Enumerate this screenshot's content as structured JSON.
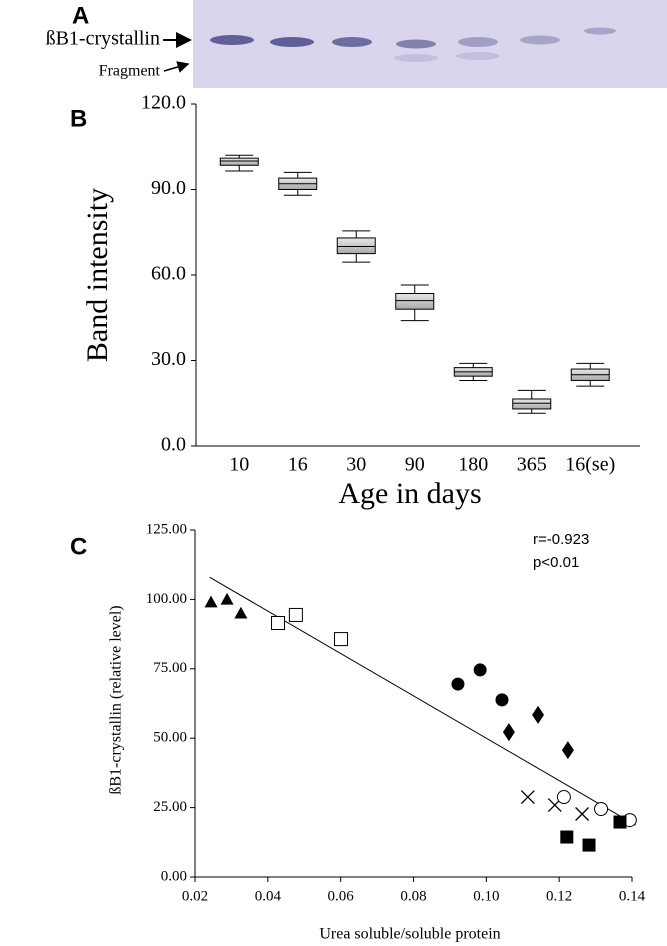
{
  "panel_a": {
    "label": "A",
    "band_labels": [
      "ßB1-crystallin",
      "Fragment"
    ]
  },
  "chart_data": [
    {
      "type": "box",
      "panel_label": "B",
      "x_label": "Age in days",
      "y_label": "Band intensity",
      "categories": [
        "10",
        "16",
        "30",
        "90",
        "180",
        "365",
        "16(se)"
      ],
      "min": [
        96.5,
        88,
        64.5,
        44,
        23,
        11.5,
        21
      ],
      "q1": [
        98.5,
        90,
        67.5,
        48,
        24.5,
        13,
        23
      ],
      "median": [
        100,
        92,
        70,
        51,
        26,
        15,
        25
      ],
      "q3": [
        101,
        94,
        73,
        53.5,
        27.5,
        16.5,
        27
      ],
      "max": [
        102,
        96,
        75.5,
        56.5,
        29,
        19.5,
        29
      ],
      "color": "#c8c8c8",
      "ylim": [
        0,
        120
      ],
      "yticks": [
        {
          "value": 0,
          "label": "0.0"
        },
        {
          "value": 30,
          "label": "30.0"
        },
        {
          "value": 60,
          "label": "60.0"
        },
        {
          "value": 90,
          "label": "90.0"
        },
        {
          "value": 120,
          "label": "120.0"
        }
      ]
    },
    {
      "type": "scatter",
      "panel_label": "C",
      "x_label": "Urea soluble/soluble protein",
      "y_label": "ßB1-crystallin (relative level)",
      "series": [
        {
          "marker": "triangle",
          "color": "#000000",
          "x": [
            0.0244,
            0.0288,
            0.0326
          ],
          "values": [
            99,
            100,
            95
          ]
        },
        {
          "marker": "open-square",
          "color": "#000000",
          "x": [
            0.0428,
            0.0477,
            0.0601
          ],
          "values": [
            91.5,
            94.4,
            85.7
          ]
        },
        {
          "marker": "circle",
          "color": "#000000",
          "x": [
            0.0922,
            0.0983,
            0.1043
          ],
          "values": [
            69.5,
            74.6,
            63.8
          ]
        },
        {
          "marker": "diamond",
          "color": "#000000",
          "x": [
            0.1062,
            0.1142,
            0.1224
          ],
          "values": [
            52.2,
            58.4,
            45.7
          ]
        },
        {
          "marker": "cross",
          "color": "#000000",
          "x": [
            0.1114,
            0.1188,
            0.1263
          ],
          "values": [
            28.8,
            25.9,
            22.7
          ]
        },
        {
          "marker": "open-circle",
          "color": "#000000",
          "x": [
            0.1213,
            0.1315,
            0.1394
          ],
          "values": [
            28.8,
            24.5,
            20.5
          ]
        },
        {
          "marker": "square",
          "color": "#000000",
          "x": [
            0.1221,
            0.1282,
            0.1367
          ],
          "values": [
            14.4,
            11.5,
            19.8
          ]
        }
      ],
      "fit": {
        "x": [
          0.024,
          0.141
        ],
        "values": [
          108,
          18.7
        ]
      },
      "annotations": [
        "r=-0.923",
        "p<0.01"
      ],
      "xlim": [
        0.02,
        0.14
      ],
      "xticks": [
        0.02,
        0.04,
        0.06,
        0.08,
        {
          "value": 0.1,
          "label": "0.10"
        },
        0.12,
        0.14
      ],
      "ylim": [
        0,
        125
      ],
      "yticks": [
        {
          "value": 0,
          "label": "0.00"
        },
        {
          "value": 25,
          "label": "25.00"
        },
        {
          "value": 50,
          "label": "50.00"
        },
        {
          "value": 75,
          "label": "75.00"
        },
        {
          "value": 100,
          "label": "100.00"
        },
        {
          "value": 125,
          "label": "125.00"
        }
      ]
    }
  ]
}
